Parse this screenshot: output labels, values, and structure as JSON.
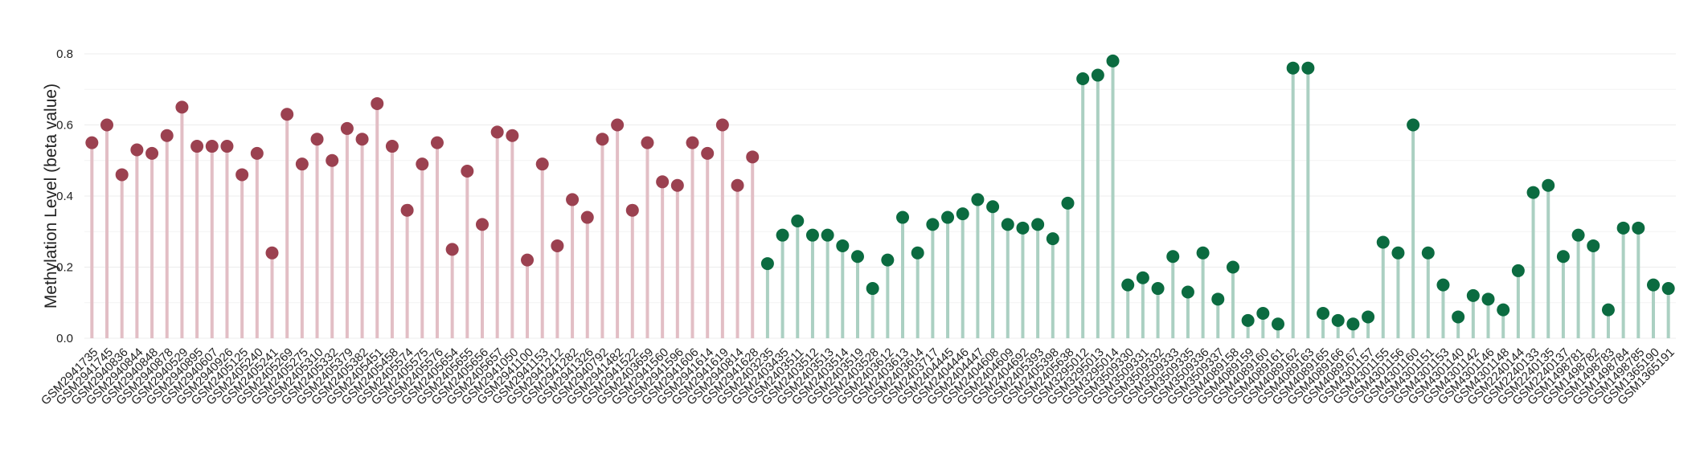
{
  "chart_data": {
    "type": "lollipop",
    "ylabel": "Methylation Level (beta value)",
    "ylim": [
      0,
      0.8
    ],
    "yticks": [
      {
        "value": 0,
        "label": "0.0"
      },
      0.2,
      0.4,
      0.6,
      0.8
    ],
    "minor_yticks": [
      0.1,
      0.3,
      0.5,
      0.7
    ],
    "grid": true,
    "categories": [
      "GSM2941735",
      "GSM2941745",
      "GSM2940836",
      "GSM2940844",
      "GSM2940848",
      "GSM2940878",
      "GSM2940529",
      "GSM2940895",
      "GSM2940607",
      "GSM2940926",
      "GSM2405125",
      "GSM2405240",
      "GSM2405241",
      "GSM2405269",
      "GSM2405275",
      "GSM2405310",
      "GSM2405332",
      "GSM2405379",
      "GSM2405382",
      "GSM2405451",
      "GSM2405458",
      "GSM2405574",
      "GSM2405575",
      "GSM2405576",
      "GSM2405654",
      "GSM2405655",
      "GSM2405656",
      "GSM2405657",
      "GSM2941050",
      "GSM2941100",
      "GSM2941153",
      "GSM2941212",
      "GSM2941282",
      "GSM2941326",
      "GSM2940792",
      "GSM2941482",
      "GSM2941522",
      "GSM2403659",
      "GSM2941560",
      "GSM2941596",
      "GSM2941606",
      "GSM2941614",
      "GSM2941619",
      "GSM2940814",
      "GSM2941628",
      "GSM2403235",
      "GSM2403435",
      "GSM2403511",
      "GSM2403512",
      "GSM2403513",
      "GSM2403514",
      "GSM2403519",
      "GSM2403528",
      "GSM2403612",
      "GSM2403613",
      "GSM2403614",
      "GSM2403717",
      "GSM2404445",
      "GSM2404446",
      "GSM2404447",
      "GSM2404608",
      "GSM2404609",
      "GSM2404692",
      "GSM2405393",
      "GSM2405398",
      "GSM2405638",
      "GSM3295012",
      "GSM3295013",
      "GSM3295014",
      "GSM3509330",
      "GSM3509331",
      "GSM3509332",
      "GSM3509333",
      "GSM3509335",
      "GSM3509336",
      "GSM3509337",
      "GSM4089158",
      "GSM4089159",
      "GSM4089160",
      "GSM4089161",
      "GSM4089162",
      "GSM4089163",
      "GSM4089165",
      "GSM4089166",
      "GSM4089167",
      "GSM4301157",
      "GSM4301155",
      "GSM4301156",
      "GSM4301160",
      "GSM4301151",
      "GSM4301153",
      "GSM4301140",
      "GSM4301142",
      "GSM4301146",
      "GSM4301148",
      "GSM2240144",
      "GSM2240133",
      "GSM2240135",
      "GSM2240137",
      "GSM1498781",
      "GSM1498782",
      "GSM1498783",
      "GSM1498784",
      "GSM1498785",
      "GSM1365190",
      "GSM1365191"
    ],
    "series": [
      {
        "color": "#9b4150",
        "stem_color": "#e2bec5",
        "values": [
          0.55,
          0.6,
          0.46,
          0.53,
          0.52,
          0.57,
          0.65,
          0.54,
          0.54,
          0.54,
          0.46,
          0.52,
          0.24,
          0.63,
          0.49,
          0.56,
          0.5,
          0.59,
          0.56,
          0.66,
          0.54,
          0.36,
          0.49,
          0.55,
          0.25,
          0.47,
          0.32,
          0.58,
          0.57,
          0.22,
          0.49,
          0.26,
          0.39,
          0.34,
          0.56,
          0.6,
          0.36,
          0.55,
          0.44,
          0.43,
          0.55,
          0.52,
          0.6,
          0.43,
          0.51,
          null,
          null,
          null,
          null,
          null,
          null,
          null,
          null,
          null,
          null,
          null,
          null,
          null,
          null,
          null,
          null,
          null,
          null,
          null,
          null,
          null,
          null,
          null,
          null,
          null,
          null,
          null,
          null,
          null,
          null,
          null,
          null,
          null,
          null,
          null,
          null,
          null,
          null,
          null,
          null,
          null,
          null,
          null,
          null,
          null,
          null,
          null,
          null,
          null,
          null,
          null,
          null,
          null,
          null,
          null,
          null,
          null,
          null,
          null,
          null,
          null
        ]
      },
      {
        "color": "#0b6b40",
        "stem_color": "#abd0c2",
        "values": [
          null,
          null,
          null,
          null,
          null,
          null,
          null,
          null,
          null,
          null,
          null,
          null,
          null,
          null,
          null,
          null,
          null,
          null,
          null,
          null,
          null,
          null,
          null,
          null,
          null,
          null,
          null,
          null,
          null,
          null,
          null,
          null,
          null,
          null,
          null,
          null,
          null,
          null,
          null,
          null,
          null,
          null,
          null,
          null,
          null,
          0.21,
          0.29,
          0.33,
          0.29,
          0.29,
          0.26,
          0.23,
          0.14,
          0.22,
          0.34,
          0.24,
          0.32,
          0.34,
          0.35,
          0.39,
          0.37,
          0.32,
          0.31,
          0.32,
          0.28,
          0.38,
          0.73,
          0.74,
          0.78,
          0.15,
          0.17,
          0.14,
          0.23,
          0.13,
          0.24,
          0.11,
          0.2,
          0.05,
          0.07,
          0.04,
          0.76,
          0.76,
          0.07,
          0.05,
          0.04,
          0.06,
          0.27,
          0.24,
          0.6,
          0.24,
          0.15,
          0.06,
          0.12,
          0.11,
          0.08,
          0.19,
          0.41,
          0.43,
          0.23,
          0.29,
          0.26,
          0.08,
          0.31,
          0.31,
          0.15,
          0.14
        ]
      }
    ]
  }
}
